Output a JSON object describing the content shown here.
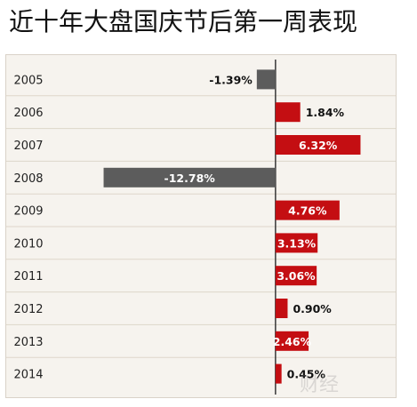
{
  "title": "近十年大盘国庆节后第一周表现",
  "colors": {
    "positive": "#c40e12",
    "negative": "#5c5c5c",
    "panel_bg": "#f6f3ee",
    "row_line": "#ddd6ca",
    "zero_line": "#2c2c2c"
  },
  "chart_data": {
    "type": "bar",
    "orientation": "horizontal",
    "categories": [
      "2005",
      "2006",
      "2007",
      "2008",
      "2009",
      "2010",
      "2011",
      "2012",
      "2013",
      "2014"
    ],
    "values": [
      -1.39,
      1.84,
      6.32,
      -12.78,
      4.76,
      3.13,
      3.06,
      0.9,
      2.46,
      0.45
    ],
    "labels": [
      "-1.39%",
      "1.84%",
      "6.32%",
      "-12.78%",
      "4.76%",
      "3.13%",
      "3.06%",
      "0.90%",
      "2.46%",
      "0.45%"
    ],
    "title": "近十年大盘国庆节后第一周表现",
    "xlabel": "",
    "ylabel": "",
    "xlim": [
      -14.6,
      9.0
    ],
    "grid": false,
    "legend": "none"
  },
  "watermark": {
    "text": "财经"
  }
}
